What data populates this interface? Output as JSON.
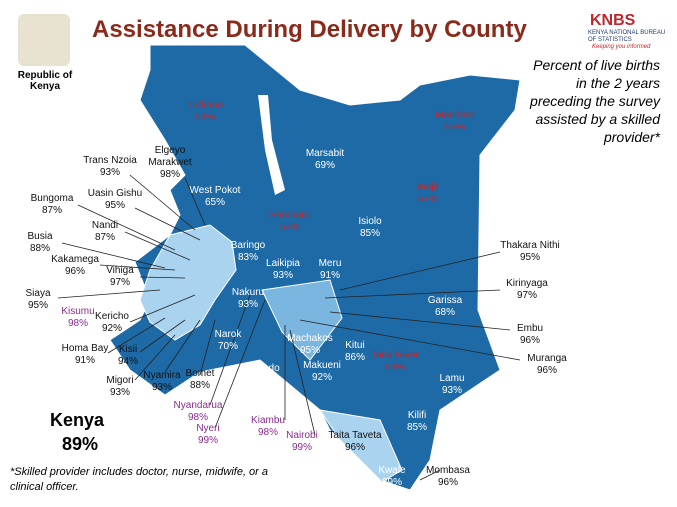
{
  "header": {
    "title": "Assistance During Delivery by County",
    "country": "Republic of Kenya",
    "logo_abbr": "KNBS",
    "logo_name": "KENYA NATIONAL BUREAU OF STATISTICS",
    "logo_slogan": "Keeping you informed"
  },
  "subtitle": "Percent of live births in the 2 years preceding the survey assisted by a skilled provider*",
  "national": {
    "name": "Kenya",
    "value": "89%"
  },
  "footnote": "*Skilled provider includes doctor, nurse, midwife, or a clinical officer.",
  "counties": [
    {
      "name": "Turkana",
      "value": "53%"
    },
    {
      "name": "Marsabit",
      "value": "69%"
    },
    {
      "name": "Mandera",
      "value": "55%"
    },
    {
      "name": "Wajir",
      "value": "57%"
    },
    {
      "name": "Elgeyo Marakwet",
      "value": "98%"
    },
    {
      "name": "Trans Nzoia",
      "value": "93%"
    },
    {
      "name": "West Pokot",
      "value": "65%"
    },
    {
      "name": "Uasin Gishu",
      "value": "95%"
    },
    {
      "name": "Bungoma",
      "value": "87%"
    },
    {
      "name": "Nandi",
      "value": "87%"
    },
    {
      "name": "Busia",
      "value": "88%"
    },
    {
      "name": "Kakamega",
      "value": "96%"
    },
    {
      "name": "Vihiga",
      "value": "97%"
    },
    {
      "name": "Siaya",
      "value": "95%"
    },
    {
      "name": "Kisumu",
      "value": "98%"
    },
    {
      "name": "Kericho",
      "value": "92%"
    },
    {
      "name": "Homa Bay",
      "value": "91%"
    },
    {
      "name": "Kisii",
      "value": "94%"
    },
    {
      "name": "Migori",
      "value": "93%"
    },
    {
      "name": "Nyamira",
      "value": "93%"
    },
    {
      "name": "Bomet",
      "value": "88%"
    },
    {
      "name": "Nyandarua",
      "value": "98%"
    },
    {
      "name": "Nyeri",
      "value": "99%"
    },
    {
      "name": "Kiambu",
      "value": "98%"
    },
    {
      "name": "Nairobi",
      "value": "99%"
    },
    {
      "name": "Taita Taveta",
      "value": "96%"
    },
    {
      "name": "Kwale",
      "value": "89%"
    },
    {
      "name": "Mombasa",
      "value": "96%"
    },
    {
      "name": "Kilifi",
      "value": "85%"
    },
    {
      "name": "Lamu",
      "value": "93%"
    },
    {
      "name": "Tana River",
      "value": "59%"
    },
    {
      "name": "Kitui",
      "value": "86%"
    },
    {
      "name": "Makueni",
      "value": "92%"
    },
    {
      "name": "Machakos",
      "value": "95%"
    },
    {
      "name": "Kajiado",
      "value": "85%"
    },
    {
      "name": "Narok",
      "value": "70%"
    },
    {
      "name": "Nakuru",
      "value": "93%"
    },
    {
      "name": "Baringo",
      "value": "83%"
    },
    {
      "name": "Laikipia",
      "value": "93%"
    },
    {
      "name": "Meru",
      "value": "91%"
    },
    {
      "name": "Isiolo",
      "value": "85%"
    },
    {
      "name": "Samburu",
      "value": "57%"
    },
    {
      "name": "Garissa",
      "value": "68%"
    },
    {
      "name": "Thakara Nithi",
      "value": "95%"
    },
    {
      "name": "Kirinyaga",
      "value": "97%"
    },
    {
      "name": "Embu",
      "value": "96%"
    },
    {
      "name": "Muranga",
      "value": "96%"
    }
  ]
}
